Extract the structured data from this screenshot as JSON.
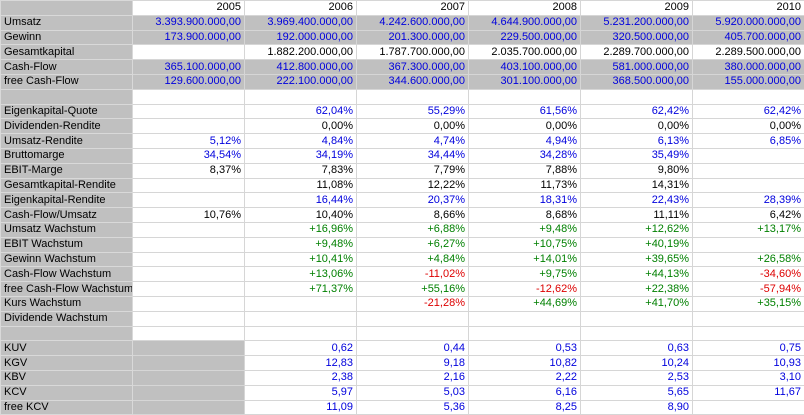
{
  "table": {
    "corner_label": "",
    "years": [
      "2005",
      "2006",
      "2007",
      "2008",
      "2009",
      "2010"
    ],
    "colors": {
      "blue": "#0000dd",
      "black": "#000000",
      "green": "#008000",
      "red": "#dd0000",
      "grey_fill": "#c0c0c0"
    },
    "rows": [
      {
        "label": "Umsatz",
        "fill": "all",
        "color": "blue",
        "values": [
          "3.393.900.000,00",
          "3.969.400.000,00",
          "4.242.600.000,00",
          "4.644.900.000,00",
          "5.231.200.000,00",
          "5.920.000.000,00"
        ]
      },
      {
        "label": "Gewinn",
        "fill": "all",
        "color": "blue",
        "values": [
          "173.900.000,00",
          "192.000.000,00",
          "201.300.000,00",
          "229.500.000,00",
          "320.500.000,00",
          "405.700.000,00"
        ]
      },
      {
        "label": "Gesamtkapital",
        "fill": "none",
        "color": "black",
        "values": [
          "",
          "1.882.200.000,00",
          "1.787.700.000,00",
          "2.035.700.000,00",
          "2.289.700.000,00",
          "2.289.500.000,00"
        ]
      },
      {
        "label": "Cash-Flow",
        "fill": "all",
        "color": "blue",
        "values": [
          "365.100.000,00",
          "412.800.000,00",
          "367.300.000,00",
          "403.100.000,00",
          "581.000.000,00",
          "380.000.000,00"
        ]
      },
      {
        "label": "free Cash-Flow",
        "fill": "all",
        "color": "blue",
        "values": [
          "129.600.000,00",
          "222.100.000,00",
          "344.600.000,00",
          "301.100.000,00",
          "368.500.000,00",
          "155.000.000,00"
        ]
      },
      {
        "label": "",
        "fill": "none",
        "color": "black",
        "values": [
          "",
          "",
          "",
          "",
          "",
          ""
        ]
      },
      {
        "label": "Eigenkapital-Quote",
        "fill": "none",
        "color": "blue",
        "values": [
          "",
          "62,04%",
          "55,29%",
          "61,56%",
          "62,42%",
          "62,42%"
        ]
      },
      {
        "label": "Dividenden-Rendite",
        "fill": "none",
        "color": "black",
        "values": [
          "",
          "0,00%",
          "0,00%",
          "0,00%",
          "0,00%",
          "0,00%"
        ]
      },
      {
        "label": "Umsatz-Rendite",
        "fill": "none",
        "color": "blue",
        "values": [
          "5,12%",
          "4,84%",
          "4,74%",
          "4,94%",
          "6,13%",
          "6,85%"
        ]
      },
      {
        "label": "Bruttomarge",
        "fill": "none",
        "color": "blue",
        "values": [
          "34,54%",
          "34,19%",
          "34,44%",
          "34,28%",
          "35,49%",
          ""
        ]
      },
      {
        "label": "EBIT-Marge",
        "fill": "none",
        "color": "black",
        "values": [
          "8,37%",
          "7,83%",
          "7,79%",
          "7,88%",
          "9,80%",
          ""
        ]
      },
      {
        "label": "Gesamtkapital-Rendite",
        "fill": "none",
        "color": "black",
        "values": [
          "",
          "11,08%",
          "12,22%",
          "11,73%",
          "14,31%",
          ""
        ]
      },
      {
        "label": "Eigenkapital-Rendite",
        "fill": "none",
        "color": "blue",
        "values": [
          "",
          "16,44%",
          "20,37%",
          "18,31%",
          "22,43%",
          "28,39%"
        ]
      },
      {
        "label": "Cash-Flow/Umsatz",
        "fill": "none",
        "color": "black",
        "values": [
          "10,76%",
          "10,40%",
          "8,66%",
          "8,68%",
          "11,11%",
          "6,42%"
        ]
      },
      {
        "label": "Umsatz Wachstum",
        "fill": "none",
        "color": "green",
        "values": [
          "",
          "+16,96%",
          "+6,88%",
          "+9,48%",
          "+12,62%",
          "+13,17%"
        ]
      },
      {
        "label": "EBIT Wachstum",
        "fill": "none",
        "color": "green",
        "values": [
          "",
          "+9,48%",
          "+6,27%",
          "+10,75%",
          "+40,19%",
          ""
        ]
      },
      {
        "label": "Gewinn Wachstum",
        "fill": "none",
        "color": "green",
        "values": [
          "",
          "+10,41%",
          "+4,84%",
          "+14,01%",
          "+39,65%",
          "+26,58%"
        ]
      },
      {
        "label": "Cash-Flow Wachstum",
        "fill": "none",
        "color": "green",
        "values": [
          "",
          "+13,06%",
          {
            "t": "-11,02%",
            "c": "red"
          },
          "+9,75%",
          "+44,13%",
          {
            "t": "-34,60%",
            "c": "red"
          }
        ]
      },
      {
        "label": "free Cash-Flow Wachstum",
        "fill": "none",
        "color": "green",
        "values": [
          "",
          "+71,37%",
          "+55,16%",
          {
            "t": "-12,62%",
            "c": "red"
          },
          "+22,38%",
          {
            "t": "-57,94%",
            "c": "red"
          }
        ]
      },
      {
        "label": "Kurs Wachstum",
        "fill": "none",
        "color": "green",
        "values": [
          "",
          "",
          {
            "t": "-21,28%",
            "c": "red"
          },
          "+44,69%",
          "+41,70%",
          "+35,15%"
        ]
      },
      {
        "label": "Dividende Wachstum",
        "fill": "none",
        "color": "green",
        "values": [
          "",
          "",
          "",
          "",
          "",
          ""
        ]
      },
      {
        "label": "",
        "fill": "none",
        "color": "black",
        "values": [
          "",
          "",
          "",
          "",
          "",
          ""
        ]
      },
      {
        "label": "KUV",
        "fill": "first",
        "color": "blue",
        "values": [
          "",
          "0,62",
          "0,44",
          "0,53",
          "0,63",
          "0,75"
        ]
      },
      {
        "label": "KGV",
        "fill": "first",
        "color": "blue",
        "values": [
          "",
          "12,83",
          "9,18",
          "10,82",
          "10,24",
          "10,93"
        ]
      },
      {
        "label": "KBV",
        "fill": "first",
        "color": "blue",
        "values": [
          "",
          "2,38",
          "2,16",
          "2,22",
          "2,53",
          "3,10"
        ]
      },
      {
        "label": "KCV",
        "fill": "first",
        "color": "blue",
        "values": [
          "",
          "5,97",
          "5,03",
          "6,16",
          "5,65",
          "11,67"
        ]
      },
      {
        "label": "free KCV",
        "fill": "first",
        "color": "blue",
        "values": [
          "",
          "11,09",
          "5,36",
          "8,25",
          "8,90",
          ""
        ]
      }
    ]
  }
}
